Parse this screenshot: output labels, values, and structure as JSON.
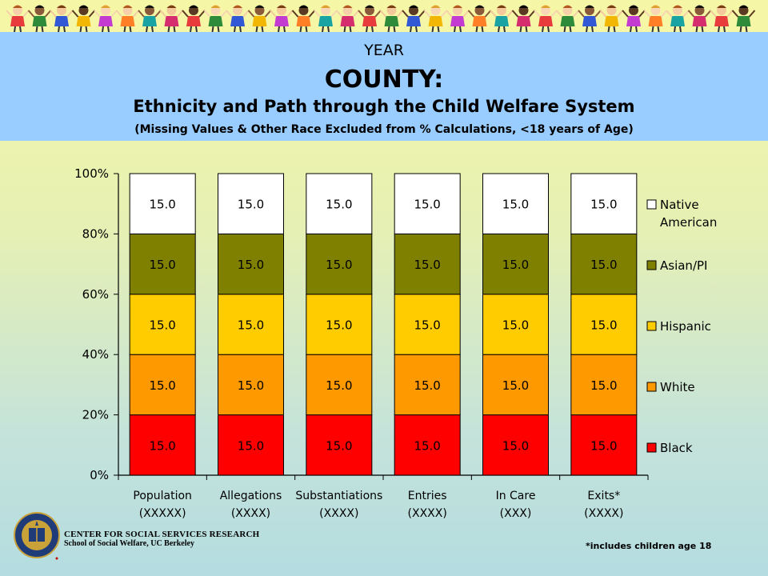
{
  "header": {
    "year": "YEAR",
    "county": "COUNTY:",
    "title": "Ethnicity and Path through the Child Welfare System",
    "subtitle": "(Missing Values & Other Race Excluded from % Calculations, <18 years of Age)"
  },
  "chart_data": {
    "type": "bar",
    "stacked": true,
    "percent_stacked": true,
    "categories": [
      "Population",
      "Allegations",
      "Substantiations",
      "Entries",
      "In Care",
      "Exits*"
    ],
    "category_counts": [
      "(XXXXX)",
      "(XXXX)",
      "(XXXX)",
      "(XXXX)",
      "(XXX)",
      "(XXXX)"
    ],
    "series": [
      {
        "name": "Black",
        "color": "#ff0000",
        "values": [
          15.0,
          15.0,
          15.0,
          15.0,
          15.0,
          15.0
        ],
        "labels": [
          "15.0",
          "15.0",
          "15.0",
          "15.0",
          "15.0",
          "15.0"
        ]
      },
      {
        "name": "White",
        "color": "#ff9900",
        "values": [
          15.0,
          15.0,
          15.0,
          15.0,
          15.0,
          15.0
        ],
        "labels": [
          "15.0",
          "15.0",
          "15.0",
          "15.0",
          "15.0",
          "15.0"
        ]
      },
      {
        "name": "Hispanic",
        "color": "#ffcc00",
        "values": [
          15.0,
          15.0,
          15.0,
          15.0,
          15.0,
          15.0
        ],
        "labels": [
          "15.0",
          "15.0",
          "15.0",
          "15.0",
          "15.0",
          "15.0"
        ]
      },
      {
        "name": "Asian/PI",
        "color": "#808000",
        "values": [
          15.0,
          15.0,
          15.0,
          15.0,
          15.0,
          15.0
        ],
        "labels": [
          "15.0",
          "15.0",
          "15.0",
          "15.0",
          "15.0",
          "15.0"
        ]
      },
      {
        "name": "Native American",
        "color": "#ffffff",
        "values": [
          15.0,
          15.0,
          15.0,
          15.0,
          15.0,
          15.0
        ],
        "labels": [
          "15.0",
          "15.0",
          "15.0",
          "15.0",
          "15.0",
          "15.0"
        ]
      }
    ],
    "legend_labels": [
      "Native\nAmerican",
      "Asian/PI",
      "Hispanic",
      "White",
      "Black"
    ],
    "yticks": [
      "0%",
      "20%",
      "40%",
      "60%",
      "80%",
      "100%"
    ],
    "ylim": [
      0,
      100
    ],
    "legend": "right",
    "grid": false
  },
  "footer": {
    "org_line1": "CENTER FOR SOCIAL SERVICES RESEARCH",
    "org_line2": "School of Social Welfare, UC Berkeley",
    "footnote": "*includes children age 18"
  }
}
